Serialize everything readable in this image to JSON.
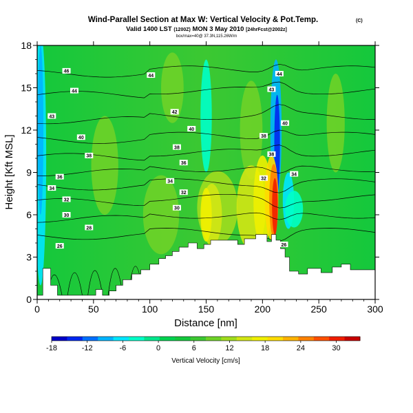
{
  "chart_data": {
    "type": "contour",
    "title": "Wind-Parallel Section at Max W: Vertical Velocity & Pot.Temp.",
    "title_mark": "(C)",
    "subtitle_main": "Valid 1400 LST",
    "subtitle_utc": "(1200Z)",
    "subtitle_date": "MON 3 May 2010",
    "subtitle_fcst": "[24hrFcst@2002z]",
    "subtitle2": "box/max=40@ 37.3N,115.26W/m",
    "xlabel": "Distance [nm]",
    "ylabel": "Height [Kft MSL]",
    "xlim": [
      0,
      300
    ],
    "ylim": [
      0,
      18
    ],
    "xticks": [
      0,
      50,
      100,
      150,
      200,
      250,
      300
    ],
    "yticks": [
      0,
      3,
      6,
      9,
      12,
      15,
      18
    ],
    "grid": false,
    "colorbar": {
      "label": "Vertical Velocity [cm/s]",
      "range": [
        -18,
        34
      ],
      "ticks": [
        -18,
        -12,
        -6,
        0,
        6,
        12,
        18,
        24,
        30
      ],
      "colors": [
        "#0000c8",
        "#0028f0",
        "#0070ff",
        "#00b4ff",
        "#00e6ff",
        "#00ffc8",
        "#00e68c",
        "#00d250",
        "#14c83c",
        "#3cc832",
        "#6ed228",
        "#a0dc1e",
        "#d2e614",
        "#f0f000",
        "#ffdc00",
        "#ffb400",
        "#ff8200",
        "#ff5000",
        "#f01e00",
        "#c80000"
      ]
    },
    "contour_series": {
      "name": "Pot.Temp.",
      "levels": [
        28,
        30,
        32,
        34,
        36,
        38,
        40,
        42,
        44,
        46
      ],
      "labels": [
        {
          "value": "46",
          "x": 26,
          "y": 16.2
        },
        {
          "value": "44",
          "x": 33,
          "y": 14.8
        },
        {
          "value": "43",
          "x": 13,
          "y": 13.0
        },
        {
          "value": "40",
          "x": 39,
          "y": 11.5
        },
        {
          "value": "38",
          "x": 46,
          "y": 10.2
        },
        {
          "value": "36",
          "x": 20,
          "y": 8.7
        },
        {
          "value": "34",
          "x": 13,
          "y": 7.9
        },
        {
          "value": "32",
          "x": 26,
          "y": 7.1
        },
        {
          "value": "30",
          "x": 26,
          "y": 6.0
        },
        {
          "value": "28",
          "x": 46,
          "y": 5.1
        },
        {
          "value": "26",
          "x": 20,
          "y": 3.8
        },
        {
          "value": "44",
          "x": 101,
          "y": 15.9
        },
        {
          "value": "42",
          "x": 122,
          "y": 13.3
        },
        {
          "value": "40",
          "x": 137,
          "y": 12.1
        },
        {
          "value": "38",
          "x": 124,
          "y": 10.8
        },
        {
          "value": "36",
          "x": 130,
          "y": 9.7
        },
        {
          "value": "34",
          "x": 118,
          "y": 8.4
        },
        {
          "value": "32",
          "x": 130,
          "y": 7.6
        },
        {
          "value": "30",
          "x": 124,
          "y": 6.5
        },
        {
          "value": "44",
          "x": 215,
          "y": 16.0
        },
        {
          "value": "43",
          "x": 208,
          "y": 14.9
        },
        {
          "value": "40",
          "x": 220,
          "y": 12.5
        },
        {
          "value": "38",
          "x": 201,
          "y": 11.6
        },
        {
          "value": "38",
          "x": 208,
          "y": 10.3
        },
        {
          "value": "34",
          "x": 228,
          "y": 8.9
        },
        {
          "value": "32",
          "x": 201,
          "y": 8.6
        },
        {
          "value": "26",
          "x": 219,
          "y": 3.9
        }
      ]
    },
    "terrain_height_kft": [
      [
        0,
        0.3
      ],
      [
        5,
        0.3
      ],
      [
        5,
        2.2
      ],
      [
        12,
        2.2
      ],
      [
        12,
        1.0
      ],
      [
        18,
        1.0
      ],
      [
        18,
        0.3
      ],
      [
        52,
        0.3
      ],
      [
        52,
        0.7
      ],
      [
        58,
        0.7
      ],
      [
        58,
        0.3
      ],
      [
        64,
        0.3
      ],
      [
        64,
        0.6
      ],
      [
        70,
        0.6
      ],
      [
        70,
        1.0
      ],
      [
        76,
        1.0
      ],
      [
        76,
        1.4
      ],
      [
        84,
        1.4
      ],
      [
        84,
        1.8
      ],
      [
        92,
        1.8
      ],
      [
        92,
        2.1
      ],
      [
        100,
        2.1
      ],
      [
        100,
        2.5
      ],
      [
        108,
        2.5
      ],
      [
        108,
        2.9
      ],
      [
        114,
        2.9
      ],
      [
        114,
        3.1
      ],
      [
        120,
        3.1
      ],
      [
        120,
        3.4
      ],
      [
        126,
        3.4
      ],
      [
        126,
        3.7
      ],
      [
        134,
        3.7
      ],
      [
        134,
        4.0
      ],
      [
        142,
        4.0
      ],
      [
        142,
        3.6
      ],
      [
        148,
        3.6
      ],
      [
        148,
        3.9
      ],
      [
        154,
        3.9
      ],
      [
        154,
        4.2
      ],
      [
        178,
        4.2
      ],
      [
        178,
        3.9
      ],
      [
        184,
        3.9
      ],
      [
        184,
        4.3
      ],
      [
        194,
        4.3
      ],
      [
        194,
        4.6
      ],
      [
        204,
        4.6
      ],
      [
        204,
        4.1
      ],
      [
        208,
        4.1
      ],
      [
        208,
        4.6
      ],
      [
        212,
        4.6
      ],
      [
        212,
        4.2
      ],
      [
        216,
        4.2
      ],
      [
        216,
        3.6
      ],
      [
        220,
        3.6
      ],
      [
        220,
        3.0
      ],
      [
        224,
        3.0
      ],
      [
        224,
        2.0
      ],
      [
        232,
        2.0
      ],
      [
        232,
        1.8
      ],
      [
        240,
        1.8
      ],
      [
        240,
        2.2
      ],
      [
        252,
        2.2
      ],
      [
        252,
        1.9
      ],
      [
        262,
        1.9
      ],
      [
        262,
        2.3
      ],
      [
        270,
        2.3
      ],
      [
        270,
        2.5
      ],
      [
        278,
        2.5
      ],
      [
        278,
        2.1
      ],
      [
        300,
        2.1
      ]
    ]
  }
}
